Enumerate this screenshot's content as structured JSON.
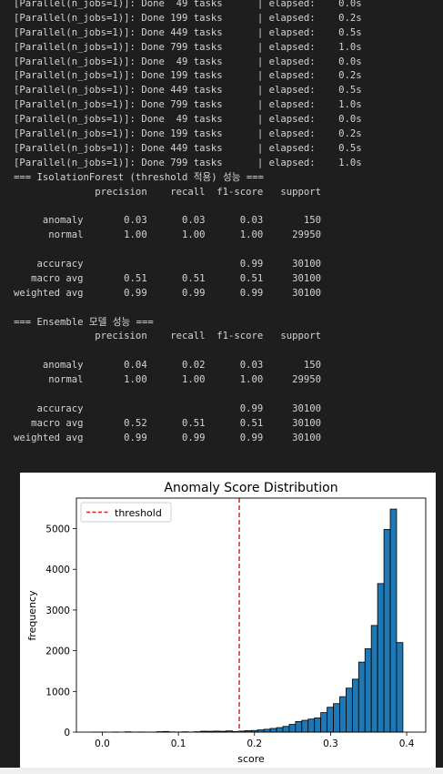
{
  "output": {
    "lines": [
      "[Parallel(n_jobs=1)]: Done  49 tasks      | elapsed:    0.0s",
      "[Parallel(n_jobs=1)]: Done 199 tasks      | elapsed:    0.2s",
      "[Parallel(n_jobs=1)]: Done 449 tasks      | elapsed:    0.5s",
      "[Parallel(n_jobs=1)]: Done 799 tasks      | elapsed:    1.0s",
      "[Parallel(n_jobs=1)]: Done  49 tasks      | elapsed:    0.0s",
      "[Parallel(n_jobs=1)]: Done 199 tasks      | elapsed:    0.2s",
      "[Parallel(n_jobs=1)]: Done 449 tasks      | elapsed:    0.5s",
      "[Parallel(n_jobs=1)]: Done 799 tasks      | elapsed:    1.0s",
      "[Parallel(n_jobs=1)]: Done  49 tasks      | elapsed:    0.0s",
      "[Parallel(n_jobs=1)]: Done 199 tasks      | elapsed:    0.2s",
      "[Parallel(n_jobs=1)]: Done 449 tasks      | elapsed:    0.5s",
      "[Parallel(n_jobs=1)]: Done 799 tasks      | elapsed:    1.0s",
      "=== IsolationForest (threshold 적용) 성능 ===",
      "              precision    recall  f1-score   support",
      "",
      "     anomaly       0.03      0.03      0.03       150",
      "      normal       1.00      1.00      1.00     29950",
      "",
      "    accuracy                           0.99     30100",
      "   macro avg       0.51      0.51      0.51     30100",
      "weighted avg       0.99      0.99      0.99     30100",
      "",
      "=== Ensemble 모델 성능 ===",
      "              precision    recall  f1-score   support",
      "",
      "     anomaly       0.04      0.02      0.03       150",
      "      normal       1.00      1.00      1.00     29950",
      "",
      "    accuracy                           0.99     30100",
      "   macro avg       0.52      0.51      0.51     30100",
      "weighted avg       0.99      0.99      0.99     30100"
    ]
  },
  "chart_data": {
    "type": "bar",
    "title": "Anomaly Score Distribution",
    "xlabel": "score",
    "ylabel": "frequency",
    "xlim": [
      -0.034,
      0.425
    ],
    "ylim": [
      0,
      5750
    ],
    "xticks": [
      "0.0",
      "0.1",
      "0.2",
      "0.3",
      "0.4"
    ],
    "xtick_values": [
      0.0,
      0.1,
      0.2,
      0.3,
      0.4
    ],
    "yticks": [
      "0",
      "1000",
      "2000",
      "3000",
      "4000",
      "5000"
    ],
    "ytick_values": [
      0,
      1000,
      2000,
      3000,
      4000,
      5000
    ],
    "bin_start": -0.0117,
    "bin_width": 0.0083,
    "values": [
      1,
      1,
      0,
      3,
      0,
      8,
      2,
      4,
      2,
      2,
      10,
      15,
      5,
      3,
      8,
      3,
      10,
      22,
      20,
      25,
      20,
      30,
      15,
      25,
      35,
      40,
      55,
      70,
      90,
      110,
      140,
      190,
      260,
      290,
      320,
      350,
      480,
      610,
      700,
      870,
      1080,
      1300,
      1720,
      2050,
      2620,
      3650,
      4980,
      5480,
      2200
    ],
    "threshold": {
      "label": "threshold",
      "value": 0.18,
      "color": "#d62728"
    },
    "bar_color": "#1f77b4",
    "legend": "top-left",
    "grid": false
  }
}
